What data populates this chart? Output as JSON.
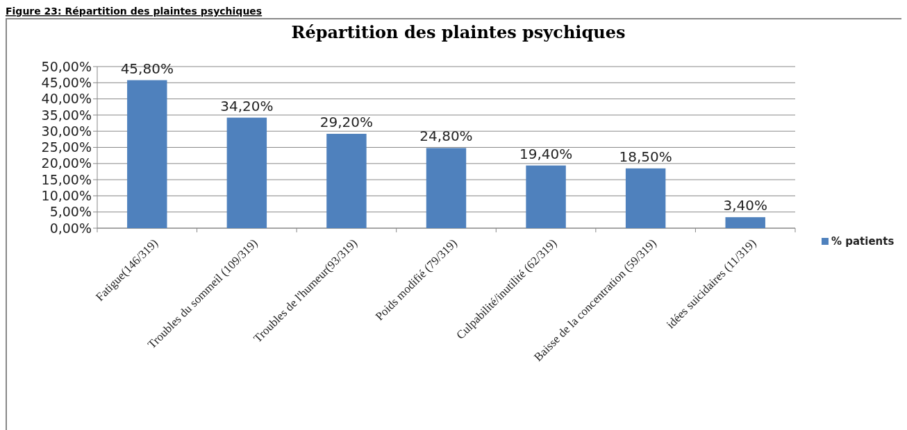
{
  "chart_data": {
    "type": "bar",
    "title": "Répartition des plaintes psychiques",
    "annotations": [
      "Figure 23: Répartition des plaintes psychiques"
    ],
    "categories": [
      "Fatigue(146/319)",
      "Troubles du sommeil (109/319)",
      "Troubles de l'humeur(93/319)",
      "Poids modifié (79/319)",
      "Culpabilité/inutilité (62/319)",
      "Baisse de la concentration (59/319)",
      "idées suicidaires (11/319)"
    ],
    "series": [
      {
        "name": "% patients",
        "color": "#4f81bd",
        "values": [
          45.8,
          34.2,
          29.2,
          24.8,
          19.4,
          18.5,
          3.4
        ],
        "value_labels": [
          "45,80%",
          "34,20%",
          "29,20%",
          "24,80%",
          "19,40%",
          "18,50%",
          "3,40%"
        ]
      }
    ],
    "ylim": [
      0,
      50
    ],
    "yticks": [
      {
        "value": 0,
        "label": "0,00%"
      },
      {
        "value": 5,
        "label": "5,00%"
      },
      {
        "value": 10,
        "label": "10,00%"
      },
      {
        "value": 15,
        "label": "15,00%"
      },
      {
        "value": 20,
        "label": "20,00%"
      },
      {
        "value": 25,
        "label": "25,00%"
      },
      {
        "value": 30,
        "label": "30,00%"
      },
      {
        "value": 35,
        "label": "35,00%"
      },
      {
        "value": 40,
        "label": "40,00%"
      },
      {
        "value": 45,
        "label": "45,00%"
      },
      {
        "value": 50,
        "label": "50,00%"
      }
    ],
    "grid": "y",
    "legend": "right"
  }
}
